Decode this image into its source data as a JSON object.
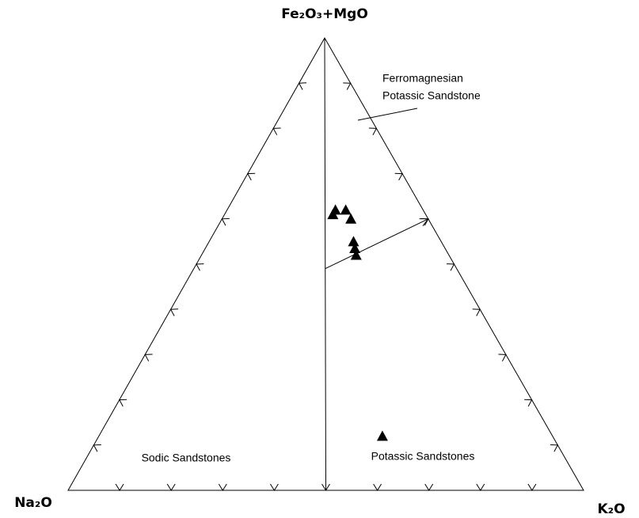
{
  "chart_data": {
    "type": "ternary",
    "axis_labels": {
      "top": "Fe₂O₃+MgO",
      "left": "Na₂O",
      "right": "K₂O"
    },
    "na_values": [
      17,
      15,
      18,
      15,
      17,
      17.5,
      18,
      33
    ],
    "k_values": [
      21,
      23,
      21,
      25,
      28,
      29,
      30,
      55
    ],
    "fe_values": [
      62,
      62,
      61,
      60,
      55,
      53.5,
      52,
      12
    ],
    "color": "#000000",
    "ticks": [
      10,
      20,
      30,
      40,
      50,
      60,
      70,
      80,
      90
    ],
    "boundaries": [
      {
        "from": [
          0,
          0,
          100
        ],
        "to": [
          50,
          50,
          0
        ],
        "arrow": false
      },
      {
        "from": [
          25.5,
          25.5,
          49
        ],
        "to": [
          0,
          40,
          60
        ],
        "arrow": true
      }
    ],
    "annotations": {
      "ferromagnesian": [
        "Ferromagnesian",
        "Potassic Sandstone"
      ],
      "sodic": "Sodic Sandstones",
      "potassic": "Potassic Sandstones"
    }
  }
}
